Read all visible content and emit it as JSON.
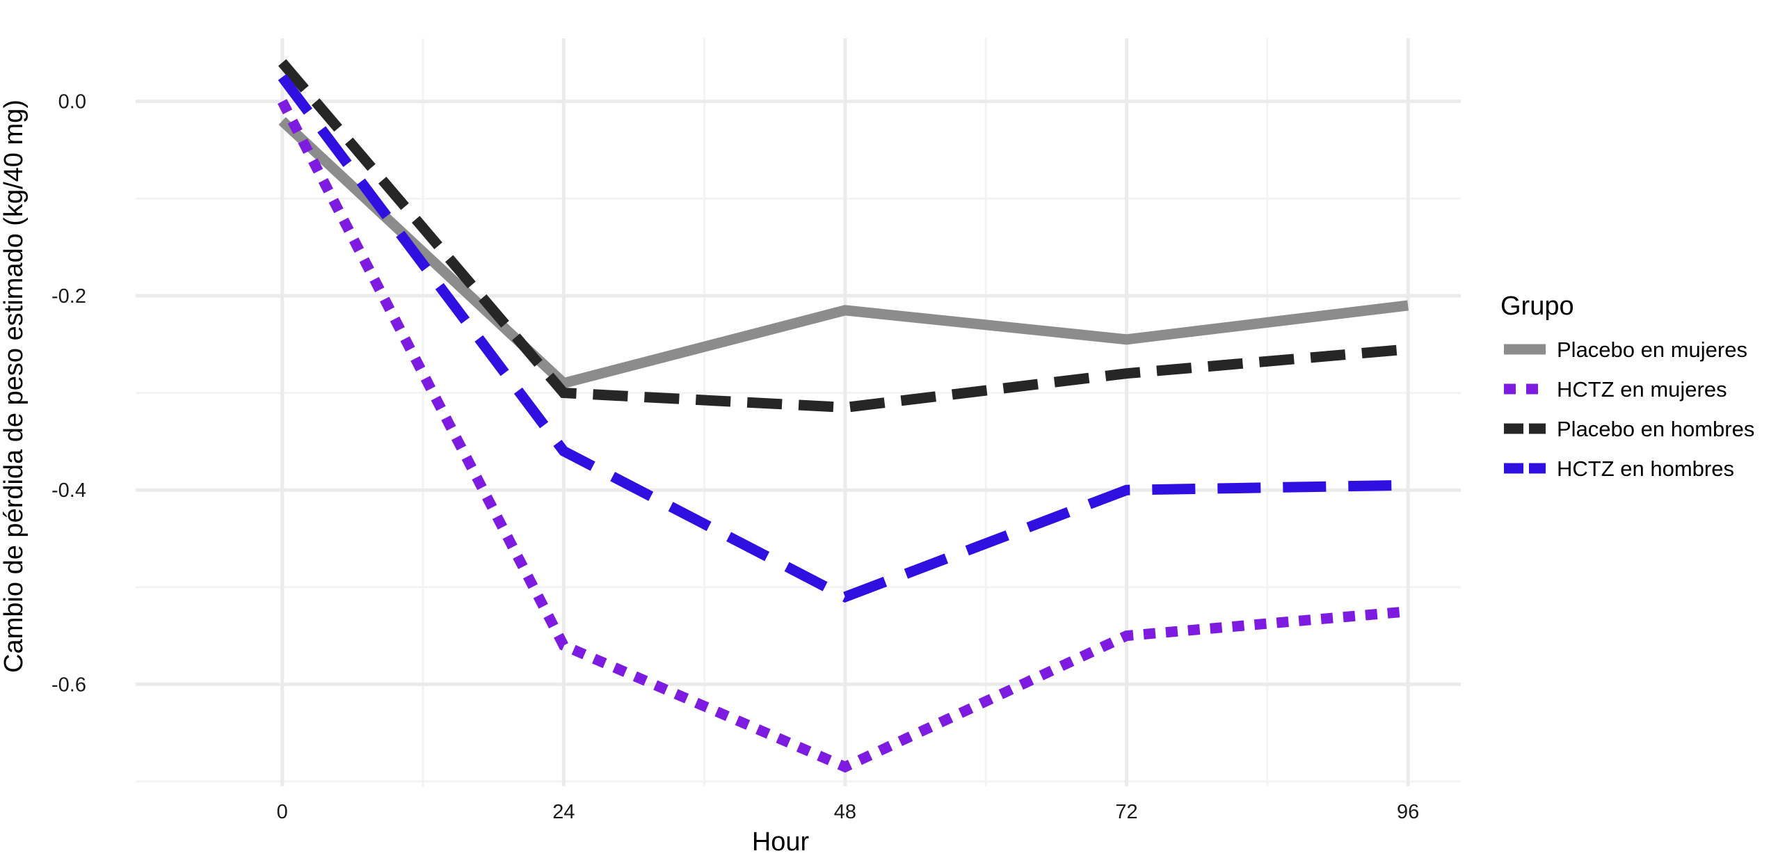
{
  "chart_data": {
    "type": "line",
    "xlabel": "Hour",
    "ylabel": "Cambio de pérdida de peso estimado (kg/40 mg)",
    "x": [
      0,
      24,
      48,
      72,
      96
    ],
    "x_ticks": [
      "0",
      "24",
      "48",
      "72",
      "96"
    ],
    "y_ticks": [
      "0.0",
      "-0.2",
      "-0.4",
      "-0.6"
    ],
    "xlim": [
      -12.5,
      100.5
    ],
    "ylim": [
      -0.705,
      0.065
    ],
    "grid": true,
    "legend_title": "Grupo",
    "legend_position": "right",
    "series": [
      {
        "name": "Placebo en mujeres",
        "values": [
          -0.02,
          -0.29,
          -0.215,
          -0.245,
          -0.21
        ],
        "color": "#8c8c8c",
        "line_style": "solid"
      },
      {
        "name": "HCTZ en mujeres",
        "values": [
          0.0,
          -0.56,
          -0.685,
          -0.55,
          -0.525
        ],
        "color": "#7d1be0",
        "line_style": "dotted"
      },
      {
        "name": "Placebo en hombres",
        "values": [
          0.04,
          -0.3,
          -0.315,
          -0.28,
          -0.255
        ],
        "color": "#262626",
        "line_style": "dashed"
      },
      {
        "name": "HCTZ en hombres",
        "values": [
          0.025,
          -0.36,
          -0.51,
          -0.4,
          -0.395
        ],
        "color": "#2f10e0",
        "line_style": "longdash"
      }
    ]
  }
}
